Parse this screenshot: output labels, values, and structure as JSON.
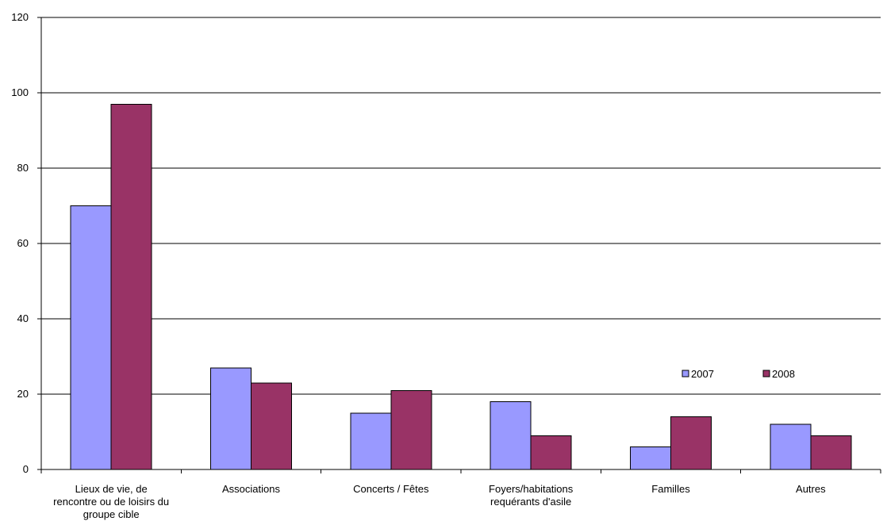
{
  "chart_data": {
    "type": "bar",
    "title": "",
    "xlabel": "",
    "ylabel": "",
    "ylim": [
      0,
      120
    ],
    "yticks": [
      0,
      20,
      40,
      60,
      80,
      100,
      120
    ],
    "grid": true,
    "legend_position": "right",
    "categories": [
      [
        "Lieux de vie, de",
        "rencontre ou de loisirs du",
        "groupe cible"
      ],
      [
        "Associations"
      ],
      [
        "Concerts / Fêtes"
      ],
      [
        "Foyers/habitations",
        "requérants d'asile"
      ],
      [
        "Familles"
      ],
      [
        "Autres"
      ]
    ],
    "series": [
      {
        "name": "2007",
        "color": "#9999ff",
        "values": [
          70,
          27,
          15,
          18,
          6,
          12
        ]
      },
      {
        "name": "2008",
        "color": "#993366",
        "values": [
          97,
          23,
          21,
          9,
          14,
          9
        ]
      }
    ]
  }
}
